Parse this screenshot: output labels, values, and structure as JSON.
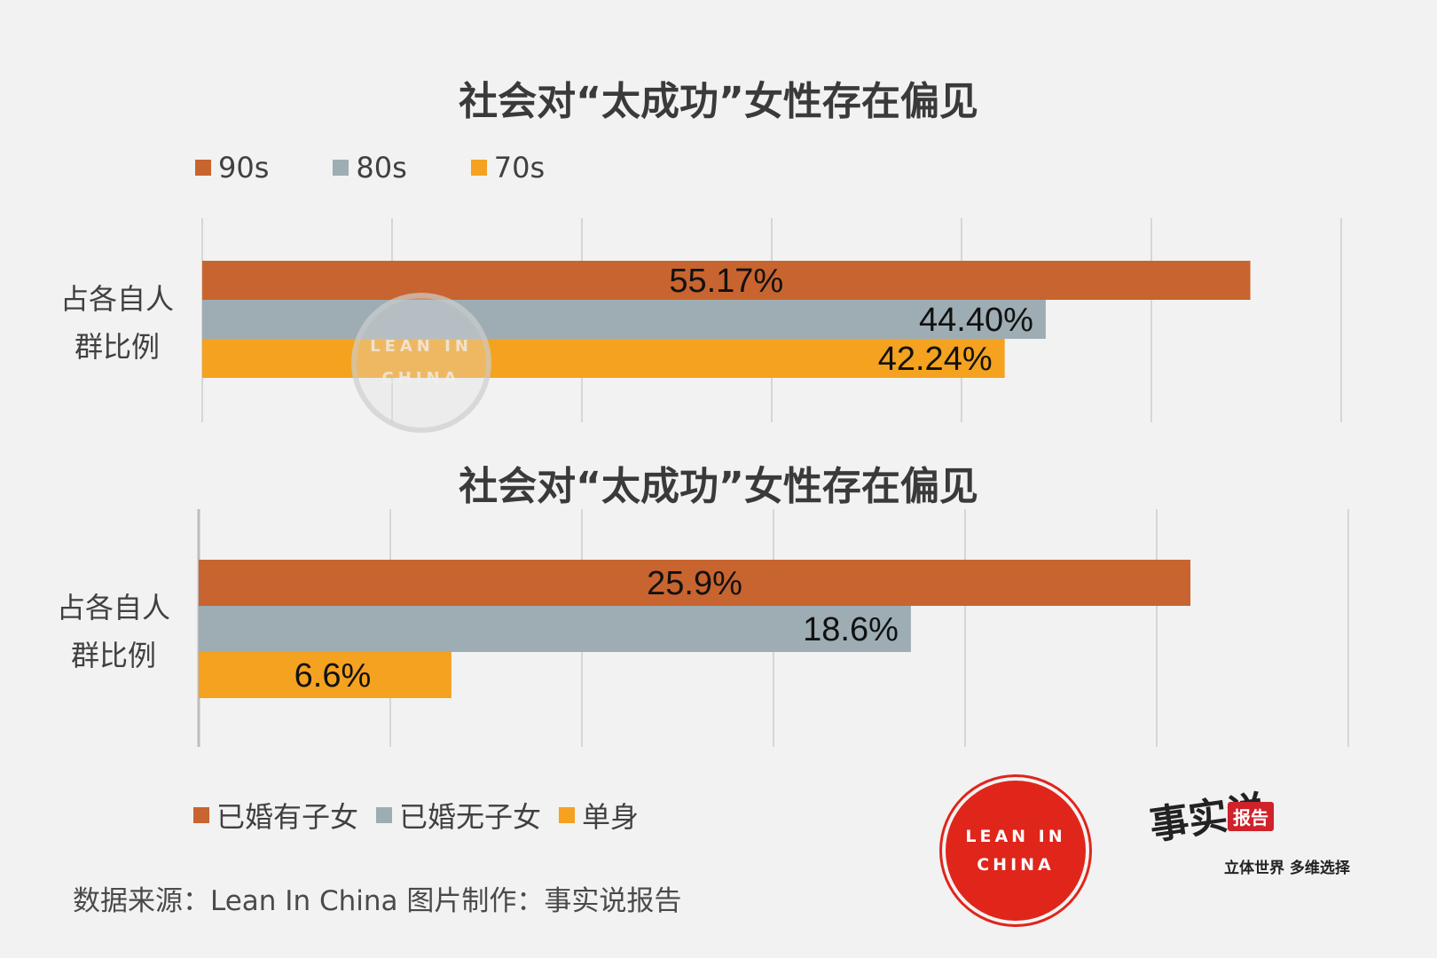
{
  "charts": [
    {
      "title": "社会对“太成功”女性存在偏见",
      "category_label_line1": "占各自人",
      "category_label_line2": "群比例",
      "legend": [
        "90s",
        "80s",
        "70s"
      ]
    },
    {
      "title": "社会对“太成功”女性存在偏见",
      "category_label_line1": "占各自人",
      "category_label_line2": "群比例",
      "legend": [
        "已婚有子女",
        "已婚无子女",
        "单身"
      ]
    }
  ],
  "colors": {
    "series1": "#c8642f",
    "series2": "#9dadb3",
    "series3": "#f4a21f",
    "grid": "#d6d6d6"
  },
  "chart_data": [
    {
      "type": "bar",
      "orientation": "horizontal",
      "title": "社会对“太成功”女性存在偏见",
      "categories": [
        "占各自人群比例"
      ],
      "series": [
        {
          "name": "90s",
          "values": [
            55.17
          ],
          "label": "55.17%"
        },
        {
          "name": "80s",
          "values": [
            44.4
          ],
          "label": "44.40%"
        },
        {
          "name": "70s",
          "values": [
            42.24
          ],
          "label": "42.24%"
        }
      ],
      "xlim": [
        0,
        60
      ],
      "grid": true,
      "legend_position": "top-left"
    },
    {
      "type": "bar",
      "orientation": "horizontal",
      "title": "社会对“太成功”女性存在偏见",
      "categories": [
        "占各自人群比例"
      ],
      "series": [
        {
          "name": "已婚有子女",
          "values": [
            25.9
          ],
          "label": "25.9%"
        },
        {
          "name": "已婚无子女",
          "values": [
            18.6
          ],
          "label": "18.6%"
        },
        {
          "name": "单身",
          "values": [
            6.6
          ],
          "label": "6.6%"
        }
      ],
      "xlim": [
        0,
        30
      ],
      "grid": true,
      "legend_position": "bottom-left"
    }
  ],
  "source": "数据来源：Lean In China  图片制作：事实说报告",
  "logos": {
    "lean_in_line1": "LEAN IN",
    "lean_in_line2": "CHINA",
    "brand_calligraphy": "事实说",
    "brand_badge": "报告",
    "brand_slogan": "立体世界 多维选择"
  }
}
